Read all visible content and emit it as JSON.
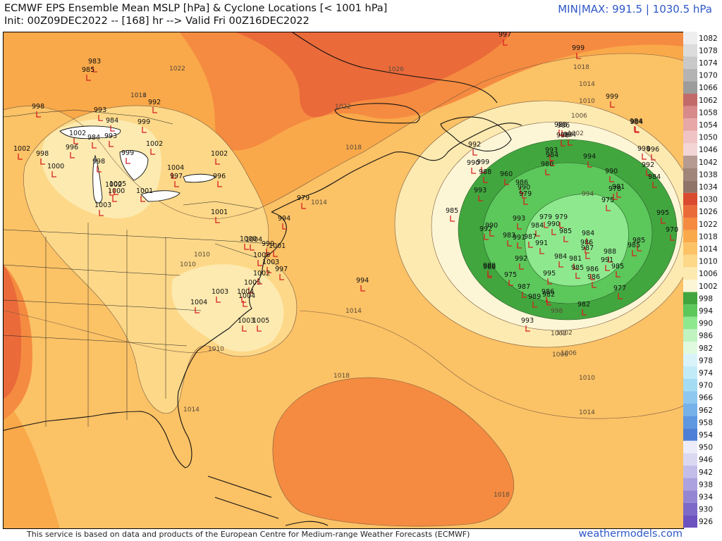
{
  "header": {
    "title_line1": "ECMWF EPS Ensemble Mean MSLP [hPa] & Cyclone Locations [< 1001 hPa]",
    "title_line2": "Init: 00Z09DEC2022 -- [168] hr --> Valid Fri 00Z16DEC2022",
    "minmax": "MIN|MAX: 991.5 | 1030.5 hPa"
  },
  "footer": {
    "note": "This service is based on data and products of the European Centre for Medium-range Weather Forecasts (ECMWF)",
    "site": "weathermodels.com"
  },
  "colorbar": {
    "levels": [
      "1082",
      "1078",
      "1074",
      "1070",
      "1066",
      "1062",
      "1058",
      "1054",
      "1050",
      "1046",
      "1042",
      "1038",
      "1034",
      "1030",
      "1026",
      "1022",
      "1018",
      "1014",
      "1010",
      "1006",
      "1002",
      "998",
      "994",
      "990",
      "986",
      "982",
      "978",
      "974",
      "970",
      "966",
      "962",
      "958",
      "954",
      "950",
      "946",
      "942",
      "938",
      "934",
      "930",
      "926"
    ],
    "colors": [
      "#eeeeee",
      "#dcdcdc",
      "#c9c9c9",
      "#b3b3b3",
      "#9c9c9c",
      "#c26a6a",
      "#d88a8a",
      "#e7a7a7",
      "#f0c4c4",
      "#f3d5d5",
      "#b59b91",
      "#a08679",
      "#8f7468",
      "#d94a2f",
      "#ea6a3a",
      "#f58b40",
      "#f9a94a",
      "#fbc266",
      "#fcd888",
      "#fdeab0",
      "#fdf6d6",
      "#41a63e",
      "#5cc75b",
      "#8ee98e",
      "#c0f3c0",
      "#e0fae0",
      "#d9f3fb",
      "#c2ebf8",
      "#a4dcf3",
      "#8ec7ef",
      "#77b1ea",
      "#5d97e0",
      "#4d7ed6",
      "#ececf8",
      "#dad8f1",
      "#c3bde9",
      "#aca2df",
      "#9486d3",
      "#7d6ac8",
      "#6c52bf"
    ]
  },
  "map": {
    "contour_labels": {
      "c1022a": "1022",
      "c1026": "1026",
      "c1018a": "1018",
      "c1022b": "1022",
      "c1018b": "1018",
      "c1014a": "1014",
      "c1014b": "1014",
      "c1014c": "1014",
      "c1010a": "1010",
      "c1010b": "1010",
      "c1010c": "1010",
      "c1006a": "1006",
      "c1006b": "1006",
      "c1002a": "1002",
      "c1002b": "1002",
      "c998a": "998",
      "c994": "994",
      "c998b": "998",
      "c1010d": "1010",
      "c1014d": "1014",
      "c1018c": "1018",
      "c1018d": "1018",
      "c1018e": "1018",
      "c1014e": "1014",
      "c1010e": "1010",
      "c1006c": "1006",
      "c1002c": "1002",
      "c1014f": "1014"
    },
    "markers": [
      "983",
      "985",
      "998",
      "993",
      "984",
      "992",
      "999",
      "1002",
      "996",
      "984",
      "993",
      "998",
      "1002",
      "999",
      "1002",
      "1000",
      "998",
      "1004",
      "997",
      "1002",
      "1002",
      "1000",
      "1005",
      "1001",
      "1003",
      "996",
      "1001",
      "994",
      "979",
      "1004",
      "999",
      "1000",
      "1001",
      "1003",
      "1008",
      "1005",
      "1002",
      "997",
      "1004",
      "1003",
      "1004",
      "1004",
      "1003",
      "1005",
      "994",
      "999",
      "986",
      "988",
      "986",
      "988",
      "992",
      "990",
      "988",
      "993",
      "960",
      "990",
      "979",
      "985",
      "992",
      "990",
      "993",
      "984",
      "990",
      "983",
      "991",
      "987",
      "985",
      "984",
      "986",
      "987",
      "991",
      "979",
      "995",
      "992",
      "988",
      "984",
      "981",
      "985",
      "986",
      "988",
      "975",
      "987",
      "982",
      "989",
      "986",
      "982",
      "993",
      "993",
      "984",
      "980",
      "994",
      "990",
      "978",
      "981",
      "975",
      "984",
      "995",
      "998",
      "996",
      "992",
      "984",
      "970",
      "985",
      "985",
      "977",
      "988",
      "991",
      "985",
      "986",
      "993",
      "979",
      "997",
      "999",
      "999",
      "984",
      "994"
    ]
  }
}
